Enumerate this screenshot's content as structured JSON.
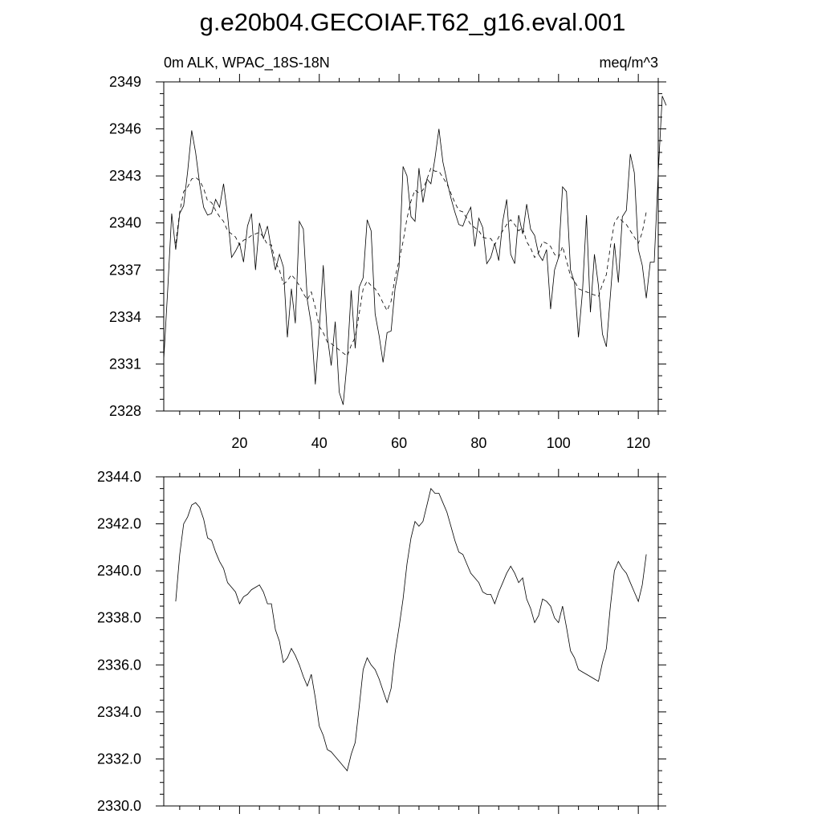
{
  "title": "g.e20b04.GECOIAF.T62_g16.eval.001",
  "left_subtitle": "0m ALK, WPAC_18S-18N",
  "right_subtitle": "meq/m^3",
  "chart_data": [
    {
      "type": "line",
      "title": "",
      "xlim": [
        1,
        125
      ],
      "ylim": [
        2328,
        2349
      ],
      "x_ticks": [
        20,
        40,
        60,
        80,
        100,
        120
      ],
      "x_tick_labels": [
        "20",
        "40",
        "60",
        "80",
        "100",
        "120"
      ],
      "y_ticks": [
        2328,
        2331,
        2334,
        2337,
        2340,
        2343,
        2346,
        2349
      ],
      "y_tick_labels": [
        "2328",
        "2331",
        "2334",
        "2337",
        "2340",
        "2343",
        "2346",
        "2349"
      ],
      "grid": false,
      "series": [
        {
          "style": "solid",
          "x_start": 1,
          "values": [
            2331.3,
            2335.8,
            2340.6,
            2338.3,
            2340.6,
            2341.1,
            2343.3,
            2345.9,
            2344.5,
            2342.5,
            2341.0,
            2340.5,
            2340.6,
            2341.5,
            2341.0,
            2342.5,
            2340.5,
            2337.8,
            2338.2,
            2338.7,
            2337.5,
            2339.8,
            2340.6,
            2337.0,
            2340.0,
            2339.0,
            2339.8,
            2338.3,
            2337.0,
            2338.0,
            2337.2,
            2332.7,
            2335.8,
            2333.6,
            2340.1,
            2339.6,
            2335.1,
            2333.5,
            2329.7,
            2333.2,
            2337.3,
            2332.8,
            2330.9,
            2333.7,
            2329.2,
            2328.4,
            2331.2,
            2335.7,
            2332.0,
            2335.9,
            2336.5,
            2340.2,
            2339.5,
            2334.2,
            2332.8,
            2331.1,
            2333.0,
            2333.1,
            2335.8,
            2337.2,
            2343.6,
            2343.0,
            2340.4,
            2340.1,
            2343.5,
            2341.3,
            2342.8,
            2342.5,
            2344.1,
            2346.0,
            2343.9,
            2342.7,
            2341.6,
            2340.7,
            2339.9,
            2339.8,
            2340.5,
            2341.0,
            2338.5,
            2340.3,
            2339.7,
            2337.4,
            2337.8,
            2338.7,
            2337.6,
            2340.1,
            2341.5,
            2338.0,
            2337.4,
            2340.5,
            2339.3,
            2341.2,
            2339.6,
            2339.2,
            2338.0,
            2337.6,
            2338.3,
            2334.5,
            2337.0,
            2337.8,
            2342.3,
            2342.0,
            2337.0,
            2336.2,
            2332.7,
            2335.6,
            2340.5,
            2334.3,
            2338.0,
            2336.0,
            2332.9,
            2332.1,
            2335.4,
            2338.7,
            2336.2,
            2340.4,
            2340.8,
            2344.4,
            2343.2,
            2338.3,
            2337.3,
            2335.2,
            2337.5,
            2337.5,
            2343.2,
            2348.1,
            2347.5
          ]
        },
        {
          "style": "dashed",
          "x_start": 4,
          "values": [
            2338.7,
            2340.7,
            2342.0,
            2342.3,
            2342.8,
            2342.9,
            2342.7,
            2342.2,
            2341.4,
            2341.3,
            2340.8,
            2340.4,
            2340.1,
            2339.5,
            2339.3,
            2339.1,
            2338.6,
            2338.9,
            2339.0,
            2339.2,
            2339.3,
            2339.4,
            2339.1,
            2338.6,
            2338.6,
            2337.5,
            2337.0,
            2336.1,
            2336.3,
            2336.7,
            2336.4,
            2336.0,
            2335.5,
            2335.1,
            2335.6,
            2334.6,
            2333.4,
            2333.0,
            2332.4,
            2332.3,
            2332.1,
            2331.9,
            2331.7,
            2331.5,
            2332.2,
            2332.7,
            2334.2,
            2335.8,
            2336.3,
            2336.0,
            2335.8,
            2335.4,
            2334.9,
            2334.4,
            2335.0,
            2336.5,
            2337.6,
            2338.8,
            2340.3,
            2341.4,
            2342.1,
            2341.9,
            2342.1,
            2342.8,
            2343.5,
            2343.3,
            2343.3,
            2342.9,
            2342.5,
            2341.9,
            2341.3,
            2340.8,
            2340.7,
            2340.3,
            2339.9,
            2339.7,
            2339.5,
            2339.1,
            2339.0,
            2339.0,
            2338.6,
            2339.1,
            2339.5,
            2339.9,
            2340.2,
            2339.9,
            2339.5,
            2339.7,
            2338.8,
            2338.4,
            2337.8,
            2338.1,
            2338.8,
            2338.7,
            2338.5,
            2338.0,
            2337.8,
            2338.5,
            2337.6,
            2336.6,
            2336.3,
            2335.8,
            2335.7,
            2335.6,
            2335.5,
            2335.4,
            2335.3,
            2336.1,
            2336.7,
            2338.5,
            2340.0,
            2340.4,
            2340.1,
            2339.9,
            2339.5,
            2339.1,
            2338.7,
            2339.4,
            2340.7
          ]
        }
      ]
    },
    {
      "type": "line",
      "title": "",
      "xlim": [
        1,
        125
      ],
      "ylim": [
        2330,
        2344
      ],
      "y_ticks": [
        2330,
        2332,
        2334,
        2336,
        2338,
        2340,
        2342,
        2344
      ],
      "y_tick_labels": [
        "2330.0",
        "2332.0",
        "2334.0",
        "2336.0",
        "2338.0",
        "2340.0",
        "2342.0",
        "2344.0"
      ],
      "x_tick_labels": [],
      "grid": false,
      "series": [
        {
          "style": "solid",
          "x_start": 4,
          "values": [
            2338.7,
            2340.7,
            2342.0,
            2342.3,
            2342.8,
            2342.9,
            2342.7,
            2342.2,
            2341.4,
            2341.3,
            2340.8,
            2340.4,
            2340.1,
            2339.5,
            2339.3,
            2339.1,
            2338.6,
            2338.9,
            2339.0,
            2339.2,
            2339.3,
            2339.4,
            2339.1,
            2338.6,
            2338.6,
            2337.5,
            2337.0,
            2336.1,
            2336.3,
            2336.7,
            2336.4,
            2336.0,
            2335.5,
            2335.1,
            2335.6,
            2334.6,
            2333.4,
            2333.0,
            2332.4,
            2332.3,
            2332.1,
            2331.9,
            2331.7,
            2331.5,
            2332.2,
            2332.7,
            2334.2,
            2335.8,
            2336.3,
            2336.0,
            2335.8,
            2335.4,
            2334.9,
            2334.4,
            2335.0,
            2336.5,
            2337.6,
            2338.8,
            2340.3,
            2341.4,
            2342.1,
            2341.9,
            2342.1,
            2342.8,
            2343.5,
            2343.3,
            2343.3,
            2342.9,
            2342.5,
            2341.9,
            2341.3,
            2340.8,
            2340.7,
            2340.3,
            2339.9,
            2339.7,
            2339.5,
            2339.1,
            2339.0,
            2339.0,
            2338.6,
            2339.1,
            2339.5,
            2339.9,
            2340.2,
            2339.9,
            2339.5,
            2339.7,
            2338.8,
            2338.4,
            2337.8,
            2338.1,
            2338.8,
            2338.7,
            2338.5,
            2338.0,
            2337.8,
            2338.5,
            2337.6,
            2336.6,
            2336.3,
            2335.8,
            2335.7,
            2335.6,
            2335.5,
            2335.4,
            2335.3,
            2336.1,
            2336.7,
            2338.5,
            2340.0,
            2340.4,
            2340.1,
            2339.9,
            2339.5,
            2339.1,
            2338.7,
            2339.4,
            2340.7
          ]
        }
      ]
    }
  ]
}
